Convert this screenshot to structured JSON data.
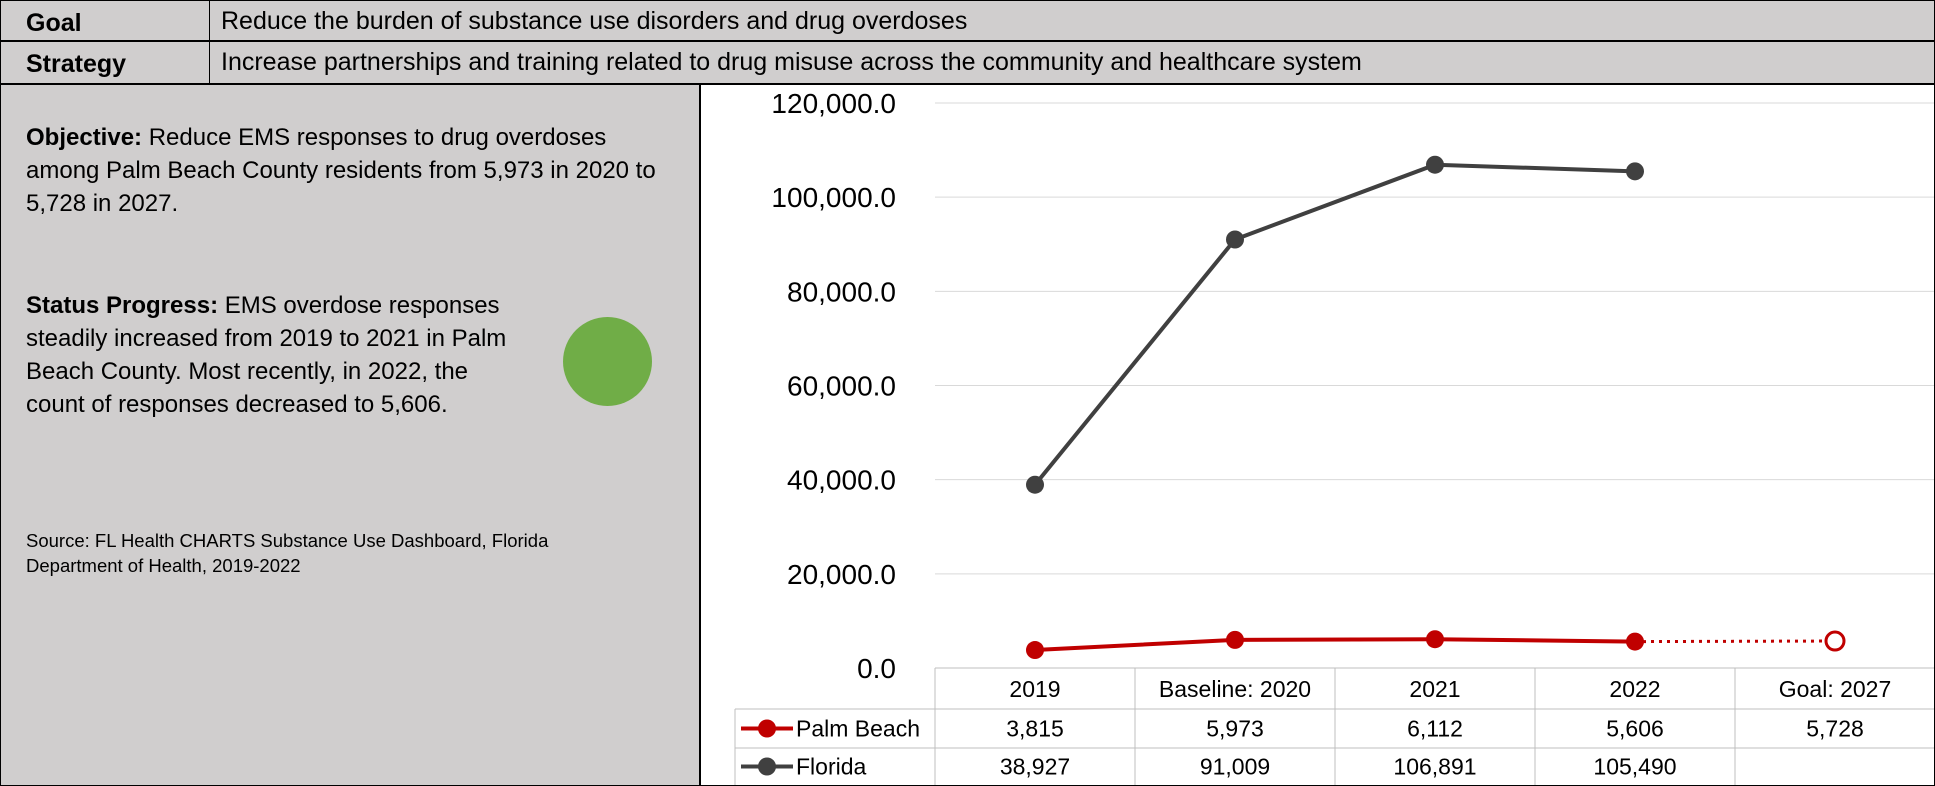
{
  "header": {
    "goal_label": "Goal",
    "goal_text": "Reduce the burden of substance use disorders and drug overdoses",
    "strategy_label": "Strategy",
    "strategy_text": "Increase partnerships and training related to drug misuse across the community and healthcare system"
  },
  "left": {
    "objective_label": "Objective:",
    "objective_text": "Reduce EMS responses to drug overdoses among Palm Beach County residents from 5,973 in 2020 to 5,728 in 2027.",
    "status_label": "Status Progress:",
    "status_text": "EMS overdose responses steadily increased from 2019 to 2021 in Palm Beach County. Most recently, in 2022, the count of responses decreased to 5,606.",
    "status_color": "#70ad47",
    "source_text": "Source: FL Health CHARTS Substance Use Dashboard, Florida Department of Health, 2019-2022"
  },
  "chart_data": {
    "type": "line",
    "categories": [
      "2019",
      "Baseline: 2020",
      "2021",
      "2022",
      "Goal: 2027"
    ],
    "ylim": [
      0,
      120000
    ],
    "yticks": [
      "0.0",
      "20,000.0",
      "40,000.0",
      "60,000.0",
      "80,000.0",
      "100,000.0",
      "120,000.0"
    ],
    "grid": true,
    "legend_placement": "data-table",
    "series": [
      {
        "name": "Palm Beach",
        "values": [
          3815,
          5973,
          6112,
          5606,
          5728
        ],
        "labels": [
          "3,815",
          "5,973",
          "6,112",
          "5,606",
          "5,728"
        ],
        "color": "#c00000",
        "goal_index": 4
      },
      {
        "name": "Florida",
        "values": [
          38927,
          91009,
          106891,
          105490,
          null
        ],
        "labels": [
          "38,927",
          "91,009",
          "106,891",
          "105,490",
          ""
        ],
        "color": "#404040"
      }
    ]
  }
}
